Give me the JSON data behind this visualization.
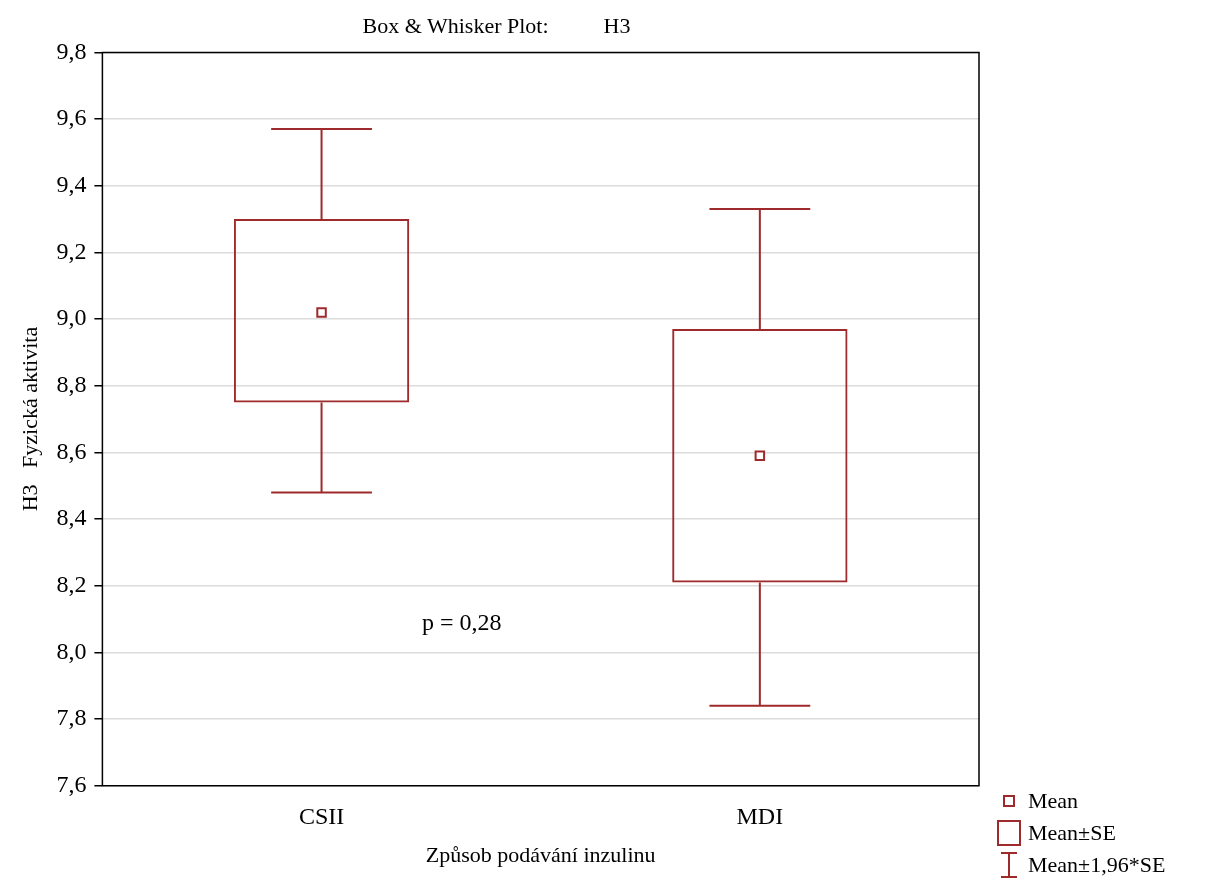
{
  "chart_data": {
    "type": "box",
    "title": "Box & Whisker Plot:          H3",
    "xlabel": "Způsob podávání inzulinu",
    "ylabel": "H3   Fyzická aktivita",
    "categories": [
      "CSII",
      "MDI"
    ],
    "boxes": [
      {
        "low": 8.48,
        "q1": 8.75,
        "median": 9.02,
        "q3": 9.3,
        "high": 9.57
      },
      {
        "low": 7.84,
        "q1": 8.21,
        "median": 8.59,
        "q3": 8.97,
        "high": 9.33
      }
    ],
    "color": "#9e2a2b",
    "ylim": [
      7.6,
      9.8
    ],
    "yticks": [
      {
        "value": 7.6,
        "label": "7,6"
      },
      {
        "value": 7.8,
        "label": "7,8"
      },
      {
        "value": 8.0,
        "label": "8,0"
      },
      {
        "value": 8.2,
        "label": "8,2"
      },
      {
        "value": 8.4,
        "label": "8,4"
      },
      {
        "value": 8.6,
        "label": "8,6"
      },
      {
        "value": 8.8,
        "label": "8,8"
      },
      {
        "value": 9.0,
        "label": "9,0"
      },
      {
        "value": 9.2,
        "label": "9,2"
      },
      {
        "value": 9.4,
        "label": "9,4"
      },
      {
        "value": 9.6,
        "label": "9,6"
      },
      {
        "value": 9.8,
        "label": "9,8"
      }
    ],
    "grid": "y",
    "marker": "square",
    "annotations": [
      "p = 0,28",
      "Mean",
      "Mean±SE",
      "Mean±1,96*SE"
    ]
  }
}
